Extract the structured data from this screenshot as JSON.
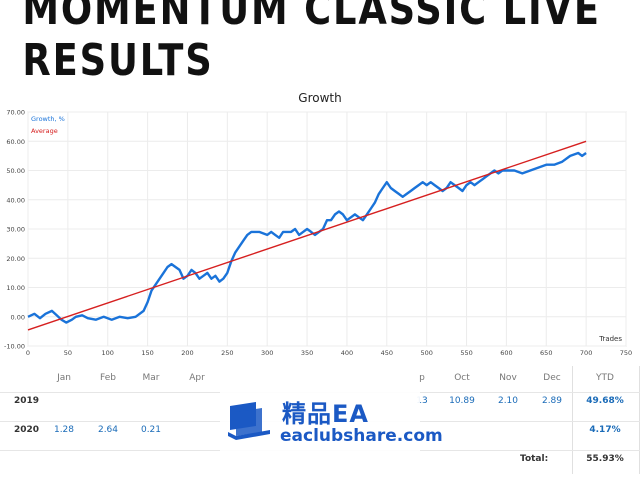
{
  "banner": {
    "title": "MOMENTUM CLASSIC LIVE RESULTS"
  },
  "chart_data": {
    "type": "line",
    "title": "Growth",
    "xlabel": "Trades",
    "ylabel": "",
    "xlim": [
      0,
      750
    ],
    "ylim": [
      -10,
      70
    ],
    "x_ticks": [
      0,
      50,
      100,
      150,
      200,
      250,
      300,
      350,
      400,
      450,
      500,
      550,
      600,
      650,
      700,
      750
    ],
    "y_ticks": [
      -10,
      0,
      10,
      20,
      30,
      40,
      50,
      60,
      70
    ],
    "y_tick_labels": [
      "-10.00",
      "0.00",
      "10.00",
      "20.00",
      "30.00",
      "40.00",
      "50.00",
      "60.00",
      "70.00"
    ],
    "grid": true,
    "legend": "top-left",
    "series": [
      {
        "name": "Growth, %",
        "color": "#1a73d9",
        "points": [
          [
            0,
            0
          ],
          [
            8,
            1
          ],
          [
            15,
            -0.5
          ],
          [
            22,
            1
          ],
          [
            30,
            2
          ],
          [
            36,
            0.5
          ],
          [
            42,
            -1
          ],
          [
            48,
            -2
          ],
          [
            55,
            -1
          ],
          [
            60,
            0
          ],
          [
            68,
            0.5
          ],
          [
            75,
            -0.5
          ],
          [
            85,
            -1
          ],
          [
            95,
            0
          ],
          [
            105,
            -1
          ],
          [
            115,
            0
          ],
          [
            125,
            -0.5
          ],
          [
            135,
            0
          ],
          [
            145,
            2
          ],
          [
            150,
            5
          ],
          [
            155,
            9
          ],
          [
            160,
            11
          ],
          [
            165,
            13
          ],
          [
            170,
            15
          ],
          [
            175,
            17
          ],
          [
            180,
            18
          ],
          [
            185,
            17
          ],
          [
            190,
            16
          ],
          [
            195,
            13
          ],
          [
            200,
            14
          ],
          [
            205,
            16
          ],
          [
            210,
            15
          ],
          [
            215,
            13
          ],
          [
            220,
            14
          ],
          [
            225,
            15
          ],
          [
            230,
            13
          ],
          [
            235,
            14
          ],
          [
            240,
            12
          ],
          [
            245,
            13
          ],
          [
            250,
            15
          ],
          [
            255,
            19
          ],
          [
            260,
            22
          ],
          [
            265,
            24
          ],
          [
            270,
            26
          ],
          [
            275,
            28
          ],
          [
            280,
            29
          ],
          [
            290,
            29
          ],
          [
            300,
            28
          ],
          [
            305,
            29
          ],
          [
            310,
            28
          ],
          [
            315,
            27
          ],
          [
            320,
            29
          ],
          [
            330,
            29
          ],
          [
            335,
            30
          ],
          [
            340,
            28
          ],
          [
            345,
            29
          ],
          [
            350,
            30
          ],
          [
            355,
            29
          ],
          [
            360,
            28
          ],
          [
            365,
            29
          ],
          [
            370,
            30
          ],
          [
            375,
            33
          ],
          [
            380,
            33
          ],
          [
            385,
            35
          ],
          [
            390,
            36
          ],
          [
            395,
            35
          ],
          [
            400,
            33
          ],
          [
            405,
            34
          ],
          [
            410,
            35
          ],
          [
            415,
            34
          ],
          [
            420,
            33
          ],
          [
            425,
            35
          ],
          [
            430,
            37
          ],
          [
            435,
            39
          ],
          [
            440,
            42
          ],
          [
            445,
            44
          ],
          [
            450,
            46
          ],
          [
            455,
            44
          ],
          [
            460,
            43
          ],
          [
            465,
            42
          ],
          [
            470,
            41
          ],
          [
            475,
            42
          ],
          [
            480,
            43
          ],
          [
            485,
            44
          ],
          [
            490,
            45
          ],
          [
            495,
            46
          ],
          [
            500,
            45
          ],
          [
            505,
            46
          ],
          [
            510,
            45
          ],
          [
            515,
            44
          ],
          [
            520,
            43
          ],
          [
            525,
            44
          ],
          [
            530,
            46
          ],
          [
            535,
            45
          ],
          [
            540,
            44
          ],
          [
            545,
            43
          ],
          [
            550,
            45
          ],
          [
            555,
            46
          ],
          [
            560,
            45
          ],
          [
            565,
            46
          ],
          [
            570,
            47
          ],
          [
            575,
            48
          ],
          [
            580,
            49
          ],
          [
            585,
            50
          ],
          [
            590,
            49
          ],
          [
            595,
            50
          ],
          [
            600,
            50
          ],
          [
            610,
            50
          ],
          [
            620,
            49
          ],
          [
            630,
            50
          ],
          [
            640,
            51
          ],
          [
            650,
            52
          ],
          [
            660,
            52
          ],
          [
            670,
            53
          ],
          [
            680,
            55
          ],
          [
            690,
            56
          ],
          [
            695,
            55
          ],
          [
            700,
            56
          ]
        ]
      },
      {
        "name": "Average",
        "color": "#d62020",
        "points": [
          [
            0,
            -4.5
          ],
          [
            700,
            60
          ]
        ]
      }
    ]
  },
  "table": {
    "months": [
      "Jan",
      "Feb",
      "Mar",
      "Apr",
      "p",
      "Oct",
      "Nov",
      "Dec"
    ],
    "ytd_header": "YTD",
    "rows": [
      {
        "year": "2019",
        "p": "13",
        "oct": "10.89",
        "nov": "2.10",
        "dec": "2.89",
        "ytd": "49.68%"
      },
      {
        "year": "2020",
        "jan": "1.28",
        "feb": "2.64",
        "mar": "0.21",
        "ytd": "4.17%"
      }
    ],
    "total_label": "Total:",
    "total_value": "55.93%"
  },
  "watermark": {
    "cn": "精品EA",
    "en": "eaclubshare.com",
    "color": "#1b59c4"
  }
}
